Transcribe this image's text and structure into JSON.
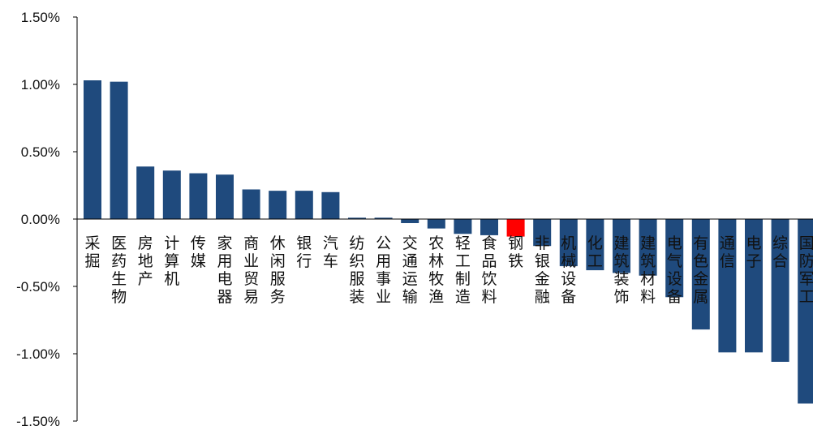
{
  "chart_data": {
    "type": "bar",
    "title": "",
    "xlabel": "",
    "ylabel": "",
    "ylim": [
      -1.5,
      1.5
    ],
    "yticks": [
      "1.50%",
      "1.00%",
      "0.50%",
      "0.00%",
      "-0.50%",
      "-1.00%",
      "-1.50%"
    ],
    "grid": false,
    "legend": "none",
    "colors": {
      "default": "#1f4a7d",
      "highlight": "#ff0000"
    },
    "highlight_category": "钢铁",
    "categories": [
      "采掘",
      "医药生物",
      "房地产",
      "计算机",
      "传媒",
      "家用电器",
      "商业贸易",
      "休闲服务",
      "银行",
      "汽车",
      "纺织服装",
      "公用事业",
      "交通运输",
      "农林牧渔",
      "轻工制造",
      "食品饮料",
      "钢铁",
      "非银金融",
      "机械设备",
      "化工",
      "建筑装饰",
      "建筑材料",
      "电气设备",
      "有色金属",
      "通信",
      "电子",
      "综合",
      "国防军工"
    ],
    "values": [
      1.03,
      1.02,
      0.39,
      0.36,
      0.34,
      0.33,
      0.22,
      0.21,
      0.21,
      0.2,
      0.01,
      0.01,
      -0.03,
      -0.07,
      -0.11,
      -0.12,
      -0.13,
      -0.2,
      -0.35,
      -0.38,
      -0.4,
      -0.42,
      -0.58,
      -0.82,
      -0.99,
      -0.99,
      -1.06,
      -1.37
    ]
  }
}
